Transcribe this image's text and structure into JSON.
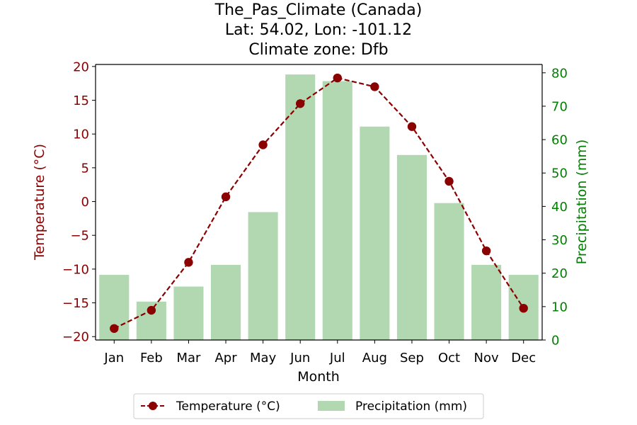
{
  "chart_data": {
    "type": "bar+line",
    "title_lines": [
      "The_Pas_Climate (Canada)",
      "Lat: 54.02, Lon: -101.12",
      "Climate zone: Dfb"
    ],
    "xlabel": "Month",
    "y_left_label": "Temperature (°C)",
    "y_right_label": "Precipitation (mm)",
    "categories": [
      "Jan",
      "Feb",
      "Mar",
      "Apr",
      "May",
      "Jun",
      "Jul",
      "Aug",
      "Sep",
      "Oct",
      "Nov",
      "Dec"
    ],
    "temperature": {
      "name": "Temperature (°C)",
      "values": [
        -18.8,
        -16.1,
        -9.0,
        0.7,
        8.4,
        14.5,
        18.3,
        17.0,
        11.1,
        3.0,
        -7.3,
        -15.8
      ]
    },
    "precipitation": {
      "name": "Precipitation (mm)",
      "values": [
        19.5,
        11.5,
        16.0,
        22.5,
        38.3,
        79.5,
        77.5,
        63.9,
        55.4,
        41.0,
        22.5,
        19.5
      ]
    },
    "y_left": {
      "lim": [
        -20.5,
        20.3
      ],
      "ticks": [
        -20,
        -15,
        -10,
        -5,
        0,
        5,
        10,
        15,
        20
      ],
      "tick_labels": [
        "−20",
        "−15",
        "−10",
        "−5",
        "0",
        "5",
        "10",
        "15",
        "20"
      ]
    },
    "y_right": {
      "lim": [
        0,
        82.5
      ],
      "ticks": [
        0,
        10,
        20,
        30,
        40,
        50,
        60,
        70,
        80
      ],
      "tick_labels": [
        "0",
        "10",
        "20",
        "30",
        "40",
        "50",
        "60",
        "70",
        "80"
      ]
    },
    "colors": {
      "temperature": "#8b0000",
      "precipitation_bar": "#b1d8b1",
      "left_axis": "#8b0000",
      "right_axis": "#008000"
    },
    "grid": false,
    "legend_position": "bottom-center"
  }
}
